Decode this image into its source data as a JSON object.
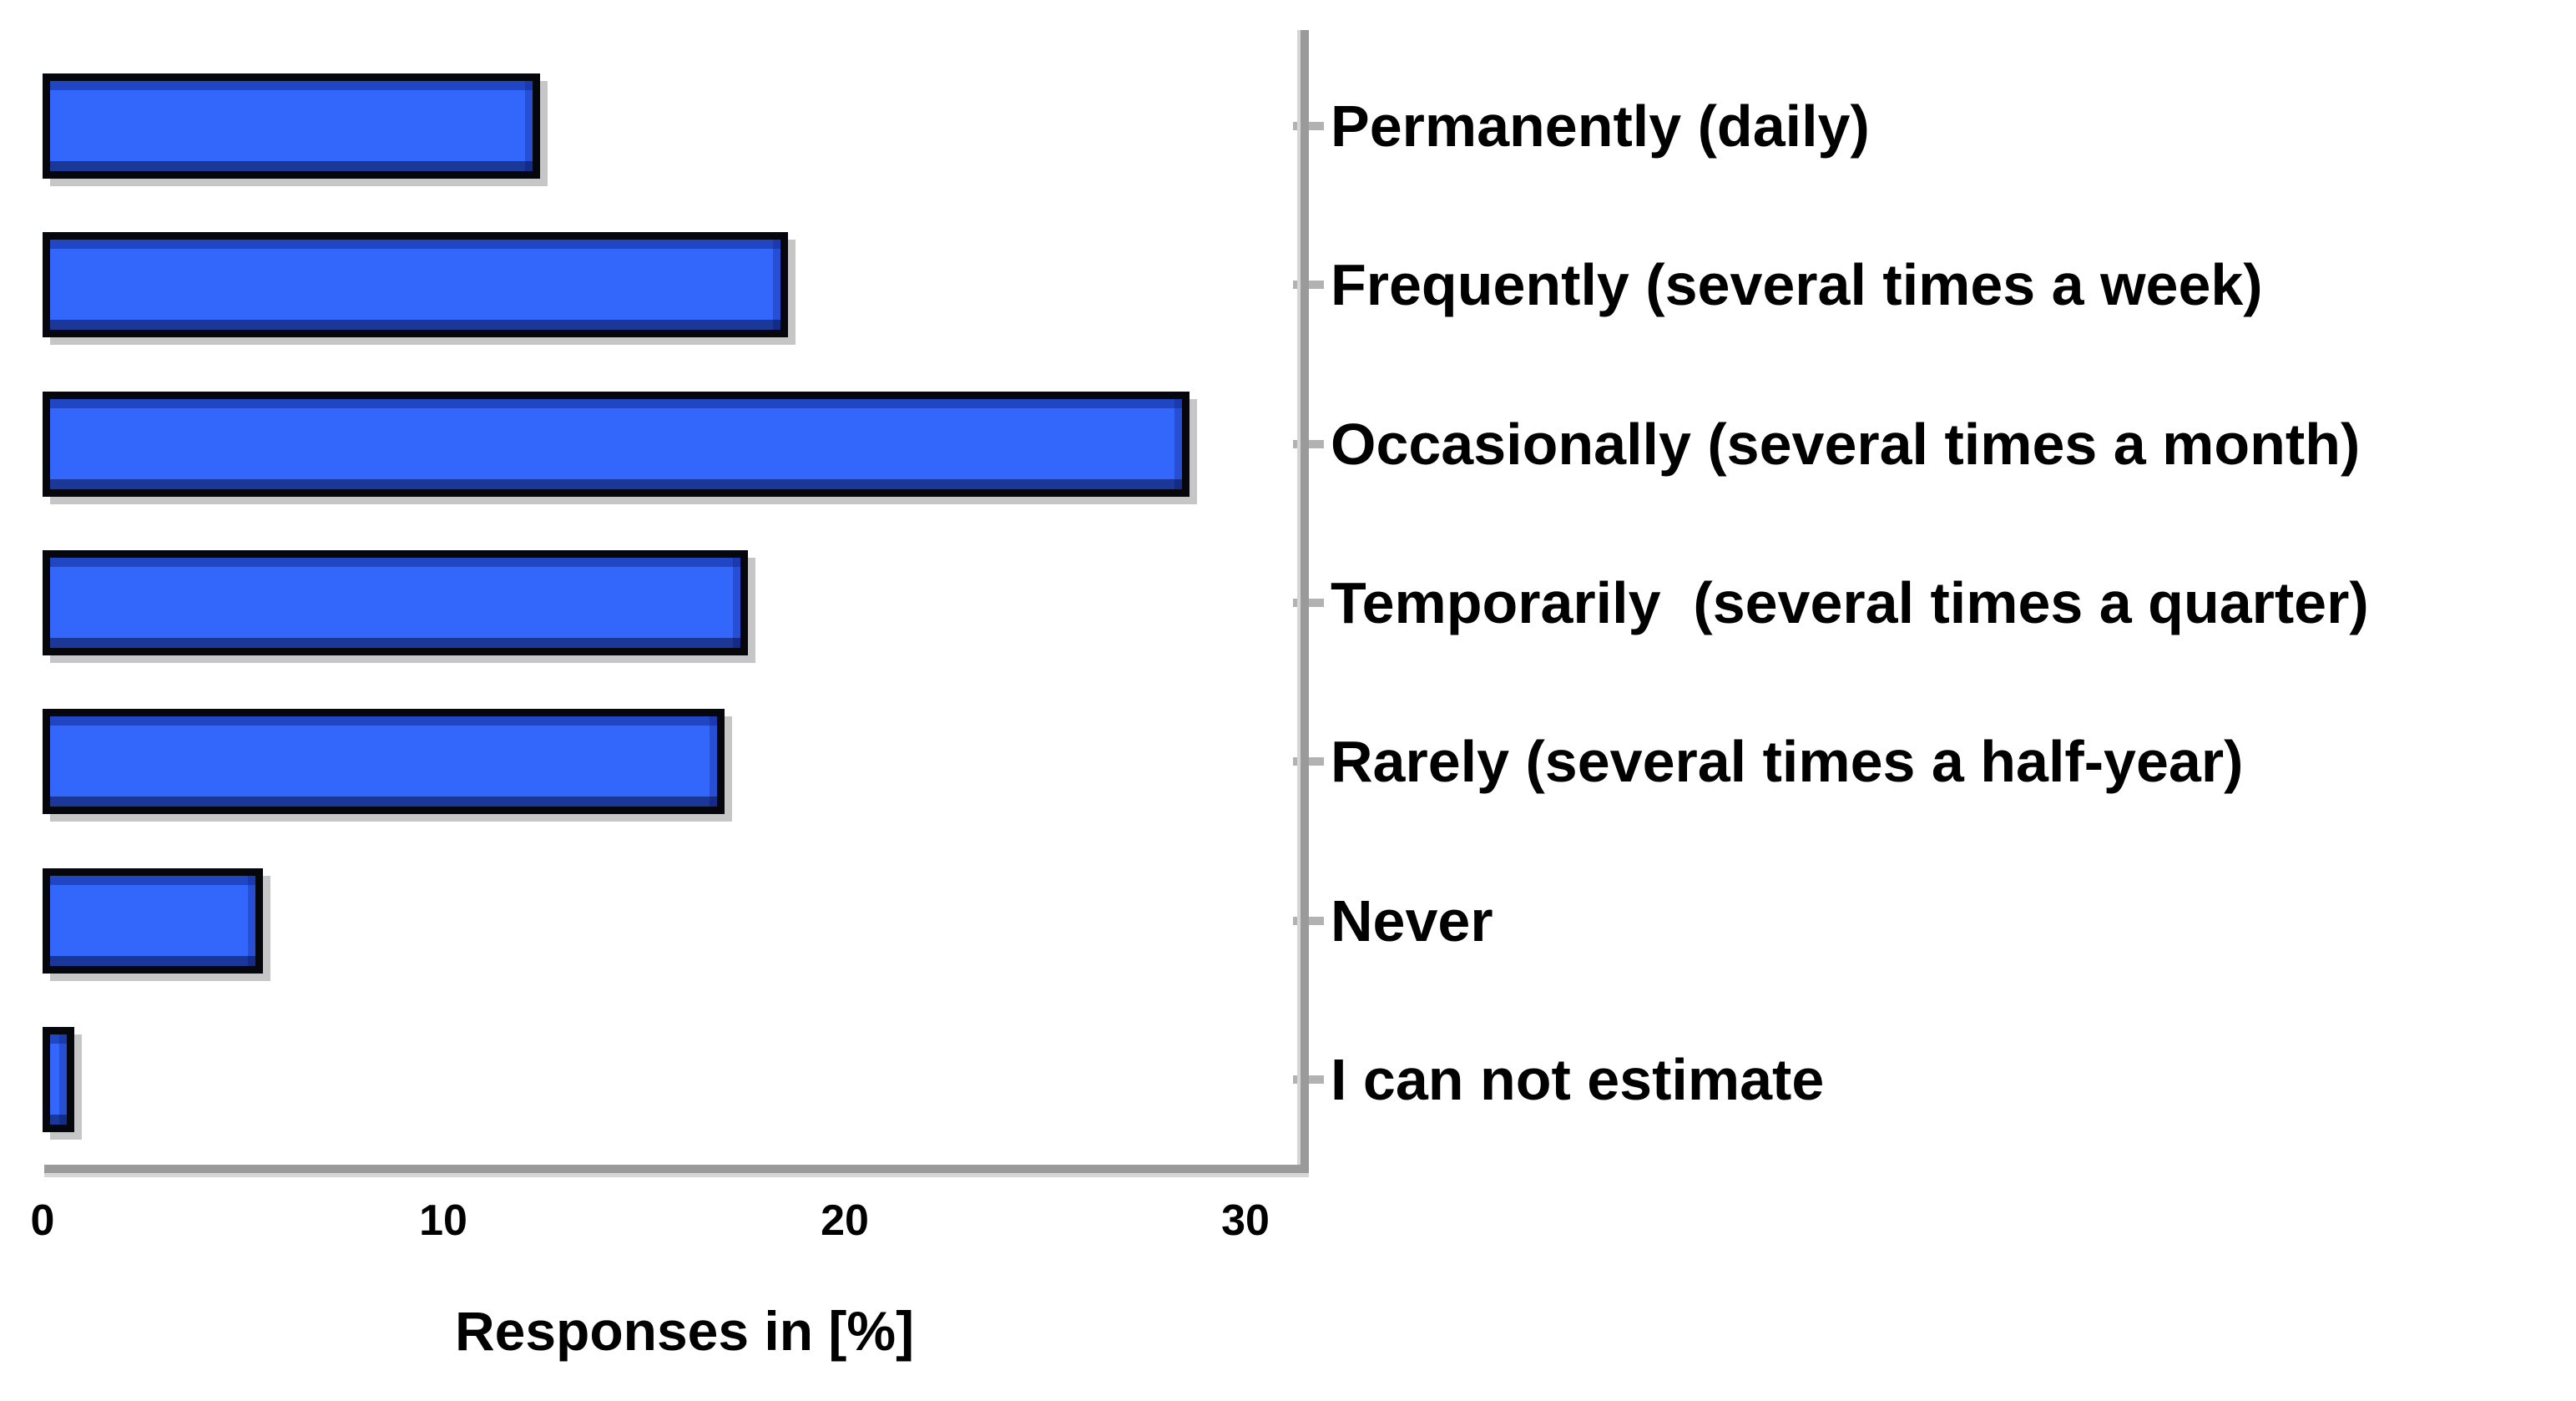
{
  "chart_data": {
    "type": "bar",
    "orientation": "horizontal",
    "title": "",
    "xlabel": "Responses in [%]",
    "ylabel": "",
    "categories": [
      "Permanently (daily)",
      "Frequently (several times a week)",
      "Occasionally (several times a month)",
      "Temporarily  (several times a quarter)",
      "Rarely (several times a half-year)",
      "Never",
      "I can not estimate"
    ],
    "values": [
      12.4,
      18.6,
      28.6,
      17.6,
      17.0,
      5.5,
      0.8
    ],
    "x_ticks": [
      0,
      10,
      20,
      30
    ],
    "xlim": [
      0,
      31.5
    ],
    "grid": false,
    "legend": null,
    "category_axis_position": "right",
    "bar_color": "#3366fa",
    "bar_border_color": "#05070d",
    "bar_shadow_color": "#c6c6c6",
    "axis_color": "#9a9a9a",
    "tick_color": "#b2b2b2",
    "text_color": "#000000"
  }
}
